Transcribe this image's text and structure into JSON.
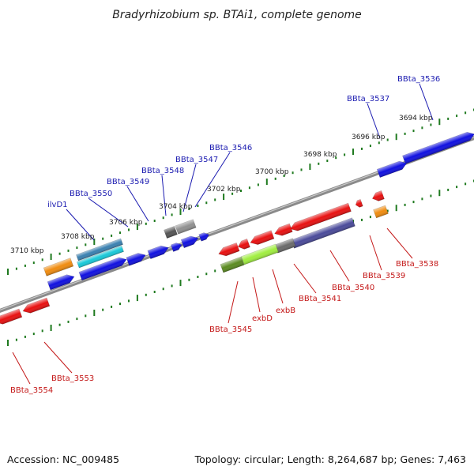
{
  "title": "Bradyrhizobium sp. BTAi1, complete genome",
  "footer": {
    "accession": "Accession: NC_009485",
    "summary": "Topology: circular; Length: 8,264,687 bp; Genes: 7,463"
  },
  "ruler_labels": [
    "3694 kbp",
    "3696 kbp",
    "3698 kbp",
    "3700 kbp",
    "3702 kbp",
    "3704 kbp",
    "3706 kbp",
    "3708 kbp",
    "3710 kbp"
  ],
  "top_strand_genes": [
    "BBta_3536",
    "BBta_3537",
    "BBta_3546",
    "BBta_3547",
    "BBta_3548",
    "BBta_3549",
    "BBta_3550",
    "ilvD1"
  ],
  "bottom_strand_genes": [
    "BBta_3538",
    "BBta_3539",
    "BBta_3540",
    "BBta_3541",
    "exbB",
    "exbD",
    "BBta_3545",
    "BBta_3553",
    "BBta_3554"
  ],
  "colors": {
    "backbone": "#8a8a8a",
    "tick": "#1f7a1f",
    "top_label": "#1a1ab0",
    "bottom_label": "#c41818",
    "gene_blue": "#1010e0",
    "gene_red": "#e81010",
    "gene_cyan": "#18c8d8",
    "gene_orange": "#f08c10",
    "gene_purple": "#4a4a9a",
    "gene_olive": "#5a8a20",
    "gene_lime": "#a0ee40",
    "gene_gray": "#909090"
  }
}
